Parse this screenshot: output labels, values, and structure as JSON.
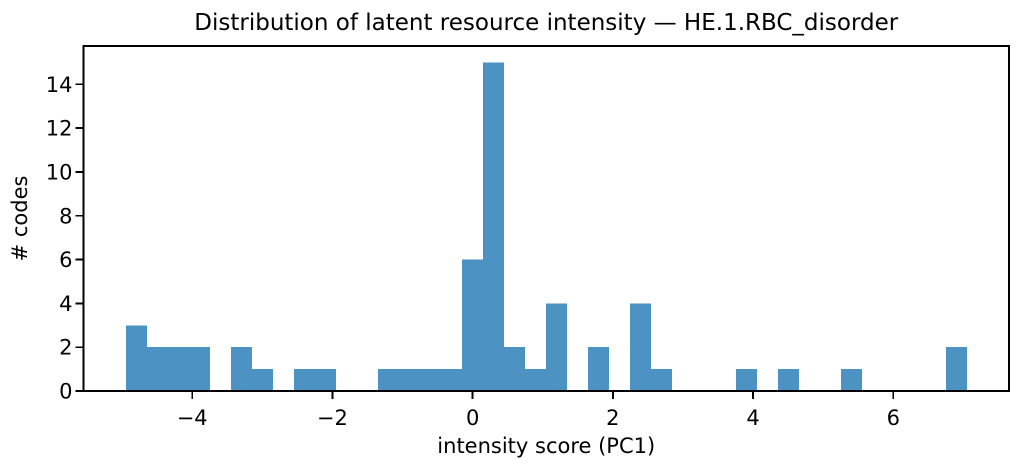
{
  "figure": {
    "background": "#ffffff"
  },
  "chart_data": {
    "type": "bar",
    "subtype": "histogram",
    "title": "Distribution of latent resource intensity — HE.1.RBC_disorder",
    "xlabel": "intensity score (PC1)",
    "ylabel": "# codes",
    "bin_edges": [
      -4.95,
      -4.65,
      -4.35,
      -4.05,
      -3.75,
      -3.45,
      -3.15,
      -2.85,
      -2.55,
      -2.25,
      -1.95,
      -1.65,
      -1.35,
      -1.05,
      -0.75,
      -0.45,
      -0.15,
      0.15,
      0.45,
      0.75,
      1.05,
      1.35,
      1.65,
      1.95,
      2.25,
      2.55,
      2.85,
      3.15,
      3.45,
      3.75,
      4.05,
      4.35,
      4.65,
      4.95,
      5.25,
      5.55,
      5.85,
      6.15,
      6.45,
      6.75,
      7.05
    ],
    "counts": [
      3,
      2,
      2,
      2,
      0,
      2,
      1,
      0,
      1,
      1,
      0,
      0,
      1,
      1,
      1,
      1,
      6,
      15,
      2,
      1,
      4,
      0,
      2,
      0,
      4,
      1,
      0,
      0,
      0,
      1,
      0,
      1,
      0,
      0,
      1,
      0,
      0,
      0,
      0,
      2
    ],
    "total_codes": 58,
    "bin_width": 0.3,
    "xlim": [
      -5.55,
      7.65
    ],
    "ylim": [
      0,
      15.75
    ],
    "xticks": [
      {
        "value": -4,
        "label": "−4"
      },
      {
        "value": -2,
        "label": "−2"
      },
      {
        "value": 0,
        "label": "0"
      },
      {
        "value": 2,
        "label": "2"
      },
      {
        "value": 4,
        "label": "4"
      },
      {
        "value": 6,
        "label": "6"
      }
    ],
    "yticks": [
      {
        "value": 0,
        "label": "0"
      },
      {
        "value": 2,
        "label": "2"
      },
      {
        "value": 4,
        "label": "4"
      },
      {
        "value": 6,
        "label": "6"
      },
      {
        "value": 8,
        "label": "8"
      },
      {
        "value": 10,
        "label": "10"
      },
      {
        "value": 12,
        "label": "12"
      },
      {
        "value": 14,
        "label": "14"
      }
    ],
    "grid": false,
    "legend_position": "none",
    "colors": {
      "bar": "#4C92C3",
      "axis": "#000000",
      "text": "#000000",
      "background": "#ffffff"
    }
  }
}
